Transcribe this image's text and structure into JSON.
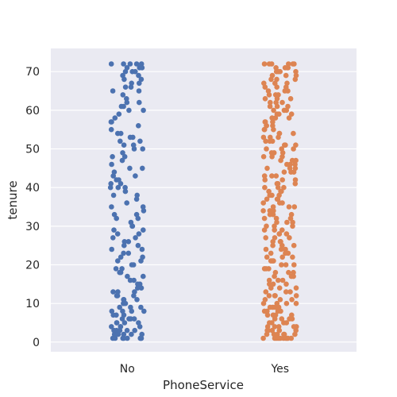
{
  "chart_data": {
    "type": "scatter",
    "subtype": "strip-plot",
    "title": "",
    "xlabel": "PhoneService",
    "ylabel": "tenure",
    "categories": [
      "No",
      "Yes"
    ],
    "ylim": [
      -2.5,
      76
    ],
    "yticks": [
      "0",
      "10",
      "20",
      "30",
      "40",
      "50",
      "60",
      "70"
    ],
    "grid": true,
    "legend": "none",
    "background_color": "#eaeaf2",
    "grid_color": "#ffffff",
    "series": [
      {
        "category": "No",
        "color": "#4c72b0",
        "values": [
          1,
          1,
          1,
          1,
          1,
          1,
          1,
          1,
          2,
          2,
          2,
          2,
          2,
          3,
          3,
          3,
          3,
          3,
          4,
          4,
          4,
          4,
          5,
          5,
          5,
          5,
          6,
          6,
          6,
          6,
          7,
          7,
          7,
          8,
          8,
          8,
          8,
          9,
          9,
          9,
          10,
          10,
          10,
          11,
          11,
          11,
          12,
          12,
          12,
          13,
          13,
          13,
          14,
          14,
          15,
          15,
          16,
          16,
          17,
          17,
          18,
          18,
          19,
          19,
          20,
          20,
          21,
          21,
          22,
          22,
          23,
          23,
          24,
          24,
          25,
          25,
          26,
          26,
          27,
          27,
          28,
          28,
          29,
          29,
          30,
          30,
          31,
          32,
          32,
          33,
          33,
          34,
          35,
          35,
          36,
          37,
          38,
          38,
          39,
          40,
          40,
          40,
          41,
          41,
          42,
          42,
          43,
          43,
          44,
          45,
          45,
          46,
          47,
          48,
          48,
          49,
          50,
          50,
          51,
          51,
          52,
          52,
          53,
          53,
          54,
          54,
          55,
          56,
          57,
          57,
          58,
          59,
          60,
          60,
          61,
          61,
          62,
          62,
          63,
          64,
          65,
          65,
          66,
          66,
          67,
          67,
          68,
          68,
          69,
          69,
          70,
          70,
          70,
          71,
          71,
          71,
          72,
          72,
          72,
          72,
          72
        ]
      },
      {
        "category": "Yes",
        "color": "#dd8452",
        "values": [
          1,
          1,
          1,
          1,
          1,
          1,
          1,
          1,
          1,
          1,
          2,
          2,
          2,
          2,
          2,
          2,
          3,
          3,
          3,
          3,
          3,
          4,
          4,
          4,
          4,
          4,
          5,
          5,
          5,
          5,
          6,
          6,
          6,
          6,
          7,
          7,
          7,
          7,
          8,
          8,
          8,
          8,
          9,
          9,
          9,
          9,
          10,
          10,
          10,
          10,
          11,
          11,
          11,
          12,
          12,
          12,
          12,
          13,
          13,
          13,
          14,
          14,
          14,
          15,
          15,
          15,
          16,
          16,
          16,
          17,
          17,
          17,
          18,
          18,
          18,
          19,
          19,
          19,
          20,
          20,
          20,
          21,
          21,
          21,
          22,
          22,
          22,
          23,
          23,
          23,
          24,
          24,
          24,
          25,
          25,
          25,
          26,
          26,
          26,
          27,
          27,
          27,
          28,
          28,
          28,
          29,
          29,
          29,
          30,
          30,
          30,
          31,
          31,
          31,
          32,
          32,
          32,
          33,
          33,
          33,
          34,
          34,
          34,
          35,
          35,
          35,
          36,
          36,
          36,
          37,
          37,
          37,
          38,
          38,
          38,
          39,
          39,
          39,
          40,
          40,
          40,
          41,
          41,
          41,
          42,
          42,
          42,
          43,
          43,
          43,
          44,
          44,
          44,
          45,
          45,
          45,
          46,
          46,
          46,
          47,
          47,
          47,
          48,
          48,
          48,
          49,
          49,
          49,
          50,
          50,
          50,
          51,
          51,
          51,
          52,
          52,
          52,
          53,
          53,
          53,
          54,
          54,
          54,
          55,
          55,
          55,
          56,
          56,
          56,
          57,
          57,
          57,
          58,
          58,
          58,
          59,
          59,
          59,
          60,
          60,
          60,
          61,
          61,
          61,
          62,
          62,
          62,
          63,
          63,
          63,
          64,
          64,
          64,
          65,
          65,
          65,
          66,
          66,
          66,
          67,
          67,
          67,
          68,
          68,
          68,
          69,
          69,
          69,
          70,
          70,
          70,
          70,
          71,
          71,
          71,
          71,
          72,
          72,
          72,
          72,
          72,
          72
        ]
      }
    ]
  }
}
